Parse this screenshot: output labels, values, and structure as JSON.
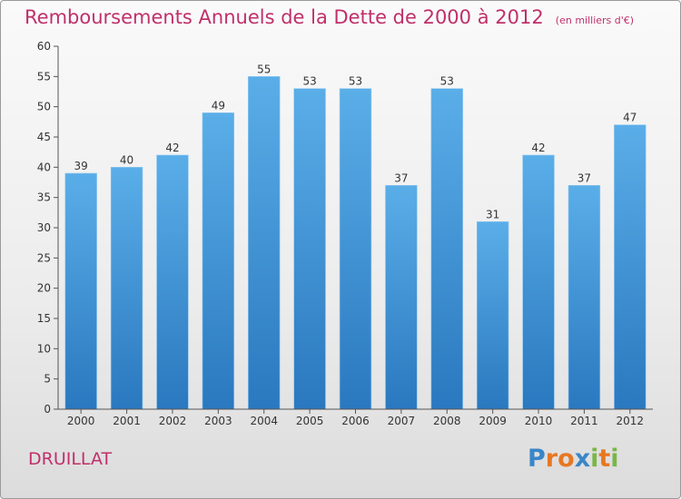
{
  "header": {
    "title": "Remboursements Annuels de la Dette de 2000 à 2012",
    "unit": "(en milliers d'€)"
  },
  "footer": {
    "commune": "DRUILLAT",
    "brand": "Proxiti",
    "brand_letters": [
      {
        "ch": "P",
        "color": "#3a86c8"
      },
      {
        "ch": "r",
        "color": "#e87722"
      },
      {
        "ch": "o",
        "color": "#e87722"
      },
      {
        "ch": "x",
        "color": "#3a86c8"
      },
      {
        "ch": "i",
        "color": "#7ab648"
      },
      {
        "ch": "t",
        "color": "#e87722"
      },
      {
        "ch": "i",
        "color": "#7ab648"
      }
    ]
  },
  "chart_data": {
    "type": "bar",
    "title": "Remboursements Annuels de la Dette de 2000 à 2012",
    "subtitle": "(en milliers d'€)",
    "xlabel": "",
    "ylabel": "",
    "categories": [
      "2000",
      "2001",
      "2002",
      "2003",
      "2004",
      "2005",
      "2006",
      "2007",
      "2008",
      "2009",
      "2010",
      "2011",
      "2012"
    ],
    "values": [
      39,
      40,
      42,
      49,
      55,
      53,
      53,
      37,
      53,
      31,
      42,
      37,
      47
    ],
    "ylim": [
      0,
      60
    ],
    "yticks": [
      0,
      5,
      10,
      15,
      20,
      25,
      30,
      35,
      40,
      45,
      50,
      55,
      60
    ],
    "grid": false,
    "colors": {
      "bar_top": "#5aaee8",
      "bar_bottom": "#2a78bf",
      "axis": "#555555",
      "label": "#333333"
    }
  }
}
